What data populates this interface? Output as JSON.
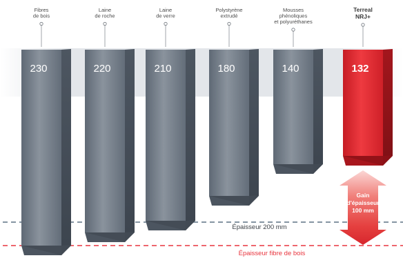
{
  "chart_data": {
    "type": "bar",
    "style": "3d-prism",
    "categories": [
      "Fibres\nde bois",
      "Laine\nde roche",
      "Laine\nde verre",
      "Polystyrène\nextrudé",
      "Mousses\nphénoliques\net polyuréthanes",
      "Terreal\nNRJ+"
    ],
    "values": [
      230,
      220,
      210,
      180,
      140,
      132
    ],
    "highlight_index": 5,
    "ylim": [
      0,
      235
    ],
    "grid": false,
    "reference_lines": [
      {
        "label": "Épaisseur 200 mm",
        "value": 200,
        "color": "#5c7183",
        "style": "dashed"
      },
      {
        "label": "Épaisseur fibre de bois",
        "value": 230,
        "color": "#e8343d",
        "style": "dashed"
      }
    ],
    "annotation": {
      "text": "Gain\nd'épaisseur\n100 mm",
      "color": "#e02a34"
    }
  },
  "colors": {
    "bar": "#6f7a86",
    "highlight": "#d9242c",
    "value_label": "#ffffff",
    "category_label": "#4a4a4a",
    "band": "#dfe2e6"
  }
}
